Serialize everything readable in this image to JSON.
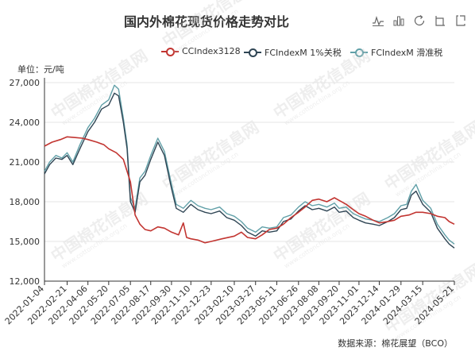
{
  "title": "国内外棉花现货价格走势对比",
  "unit_label": "单位：元/吨",
  "source_label": "数据来源：棉花展望（BCO）",
  "watermark_text": "中国棉花信息网",
  "watermark_url": "www.cottonchina.org.cn",
  "toolbox": [
    {
      "name": "line-chart-icon"
    },
    {
      "name": "bar-chart-icon"
    },
    {
      "name": "restore-icon"
    },
    {
      "name": "save-image-icon"
    },
    {
      "name": "share-icon"
    }
  ],
  "colors": {
    "cc": "#c23531",
    "fc1": "#2f4554",
    "fcs": "#61a0a8",
    "grid": "#e6e6e6",
    "axis": "#333333"
  },
  "chart_data": {
    "type": "line",
    "title": "国内外棉花现货价格走势对比",
    "xlabel": "",
    "ylabel": "单位：元/吨",
    "ylim": [
      12000,
      27000
    ],
    "yticks": [
      "12,000",
      "15,000",
      "18,000",
      "21,000",
      "24,000",
      "27,000"
    ],
    "ytick_values": [
      12000,
      15000,
      18000,
      21000,
      24000,
      27000
    ],
    "x_tick_labels": [
      "2022-01-04",
      "2022-02-21",
      "2022-04-06",
      "2022-05-20",
      "2022-07-05",
      "2022-08-17",
      "2022-09-30",
      "2022-11-10",
      "2022-12-23",
      "2023-02-10",
      "2023-03-27",
      "2023-05-11",
      "2023-06-26",
      "2023-08-08",
      "2023-09-20",
      "2023-11-01",
      "2023-12-14",
      "2024-01-29",
      "2024-03-15",
      "2024-05-21"
    ],
    "grid": true,
    "legend_position": "top-right",
    "series": [
      {
        "name": "CCIndex3128",
        "points": [
          [
            "2022-01-04",
            22200
          ],
          [
            "2022-01-20",
            22500
          ],
          [
            "2022-02-07",
            22700
          ],
          [
            "2022-02-21",
            22900
          ],
          [
            "2022-03-10",
            22850
          ],
          [
            "2022-03-25",
            22800
          ],
          [
            "2022-04-06",
            22700
          ],
          [
            "2022-04-25",
            22500
          ],
          [
            "2022-05-10",
            22300
          ],
          [
            "2022-05-20",
            22000
          ],
          [
            "2022-06-05",
            21700
          ],
          [
            "2022-06-20",
            21200
          ],
          [
            "2022-07-05",
            19500
          ],
          [
            "2022-07-15",
            17000
          ],
          [
            "2022-07-25",
            16300
          ],
          [
            "2022-08-05",
            15900
          ],
          [
            "2022-08-17",
            15800
          ],
          [
            "2022-09-01",
            16100
          ],
          [
            "2022-09-15",
            16000
          ],
          [
            "2022-09-30",
            15700
          ],
          [
            "2022-10-15",
            15500
          ],
          [
            "2022-10-25",
            16400
          ],
          [
            "2022-11-01",
            15300
          ],
          [
            "2022-11-10",
            15200
          ],
          [
            "2022-11-25",
            15100
          ],
          [
            "2022-12-10",
            14900
          ],
          [
            "2022-12-23",
            15000
          ],
          [
            "2023-01-15",
            15200
          ],
          [
            "2023-02-10",
            15400
          ],
          [
            "2023-02-25",
            15700
          ],
          [
            "2023-03-10",
            15300
          ],
          [
            "2023-03-27",
            15200
          ],
          [
            "2023-04-10",
            15500
          ],
          [
            "2023-04-25",
            15900
          ],
          [
            "2023-05-11",
            16000
          ],
          [
            "2023-05-25",
            16300
          ],
          [
            "2023-06-10",
            16800
          ],
          [
            "2023-06-26",
            17200
          ],
          [
            "2023-07-10",
            17600
          ],
          [
            "2023-07-25",
            18100
          ],
          [
            "2023-08-08",
            18200
          ],
          [
            "2023-08-25",
            18000
          ],
          [
            "2023-09-10",
            18300
          ],
          [
            "2023-09-20",
            18100
          ],
          [
            "2023-10-05",
            17800
          ],
          [
            "2023-10-20",
            17400
          ],
          [
            "2023-11-01",
            17100
          ],
          [
            "2023-11-15",
            16900
          ],
          [
            "2023-12-01",
            16600
          ],
          [
            "2023-12-14",
            16400
          ],
          [
            "2024-01-01",
            16500
          ],
          [
            "2024-01-15",
            16600
          ],
          [
            "2024-01-29",
            16900
          ],
          [
            "2024-02-15",
            17000
          ],
          [
            "2024-03-01",
            17200
          ],
          [
            "2024-03-15",
            17200
          ],
          [
            "2024-04-01",
            17100
          ],
          [
            "2024-04-15",
            16900
          ],
          [
            "2024-05-01",
            16800
          ],
          [
            "2024-05-10",
            16500
          ],
          [
            "2024-05-21",
            16300
          ]
        ]
      },
      {
        "name": "FCIndexM 1%关税",
        "points": [
          [
            "2022-01-04",
            20100
          ],
          [
            "2022-01-15",
            20800
          ],
          [
            "2022-01-28",
            21300
          ],
          [
            "2022-02-10",
            21200
          ],
          [
            "2022-02-21",
            21500
          ],
          [
            "2022-03-05",
            20800
          ],
          [
            "2022-03-20",
            22000
          ],
          [
            "2022-04-06",
            23300
          ],
          [
            "2022-04-20",
            24000
          ],
          [
            "2022-05-05",
            25000
          ],
          [
            "2022-05-20",
            25300
          ],
          [
            "2022-06-01",
            26200
          ],
          [
            "2022-06-10",
            26000
          ],
          [
            "2022-06-20",
            24000
          ],
          [
            "2022-06-28",
            22000
          ],
          [
            "2022-07-05",
            18000
          ],
          [
            "2022-07-15",
            17200
          ],
          [
            "2022-07-25",
            19500
          ],
          [
            "2022-08-05",
            20000
          ],
          [
            "2022-08-17",
            21200
          ],
          [
            "2022-09-01",
            22500
          ],
          [
            "2022-09-15",
            21500
          ],
          [
            "2022-09-30",
            19000
          ],
          [
            "2022-10-10",
            17500
          ],
          [
            "2022-10-25",
            17200
          ],
          [
            "2022-11-10",
            17800
          ],
          [
            "2022-11-25",
            17400
          ],
          [
            "2022-12-10",
            17200
          ],
          [
            "2022-12-23",
            17100
          ],
          [
            "2023-01-10",
            17300
          ],
          [
            "2023-01-25",
            16800
          ],
          [
            "2023-02-10",
            16600
          ],
          [
            "2023-02-25",
            16200
          ],
          [
            "2023-03-10",
            15700
          ],
          [
            "2023-03-27",
            15400
          ],
          [
            "2023-04-10",
            15800
          ],
          [
            "2023-04-25",
            15700
          ],
          [
            "2023-05-11",
            15800
          ],
          [
            "2023-05-25",
            16500
          ],
          [
            "2023-06-10",
            16700
          ],
          [
            "2023-06-26",
            17300
          ],
          [
            "2023-07-10",
            17700
          ],
          [
            "2023-07-25",
            17400
          ],
          [
            "2023-08-08",
            17500
          ],
          [
            "2023-08-25",
            17300
          ],
          [
            "2023-09-10",
            17600
          ],
          [
            "2023-09-20",
            17200
          ],
          [
            "2023-10-05",
            17300
          ],
          [
            "2023-10-20",
            16800
          ],
          [
            "2023-11-01",
            16600
          ],
          [
            "2023-11-15",
            16400
          ],
          [
            "2023-12-01",
            16300
          ],
          [
            "2023-12-14",
            16200
          ],
          [
            "2024-01-01",
            16500
          ],
          [
            "2024-01-15",
            16800
          ],
          [
            "2024-01-29",
            17400
          ],
          [
            "2024-02-10",
            17500
          ],
          [
            "2024-02-20",
            18500
          ],
          [
            "2024-03-01",
            18800
          ],
          [
            "2024-03-15",
            17800
          ],
          [
            "2024-04-01",
            17200
          ],
          [
            "2024-04-15",
            16000
          ],
          [
            "2024-05-01",
            15200
          ],
          [
            "2024-05-10",
            14800
          ],
          [
            "2024-05-21",
            14500
          ]
        ]
      },
      {
        "name": "FCIndexM 滑准税",
        "points": [
          [
            "2022-01-04",
            20300
          ],
          [
            "2022-01-15",
            21000
          ],
          [
            "2022-01-28",
            21500
          ],
          [
            "2022-02-10",
            21300
          ],
          [
            "2022-02-21",
            21700
          ],
          [
            "2022-03-05",
            21000
          ],
          [
            "2022-03-20",
            22300
          ],
          [
            "2022-04-06",
            23600
          ],
          [
            "2022-04-20",
            24300
          ],
          [
            "2022-05-05",
            25300
          ],
          [
            "2022-05-20",
            25700
          ],
          [
            "2022-06-01",
            26800
          ],
          [
            "2022-06-10",
            26500
          ],
          [
            "2022-06-20",
            24300
          ],
          [
            "2022-06-28",
            22300
          ],
          [
            "2022-07-05",
            18300
          ],
          [
            "2022-07-15",
            17500
          ],
          [
            "2022-07-25",
            19800
          ],
          [
            "2022-08-05",
            20300
          ],
          [
            "2022-08-17",
            21500
          ],
          [
            "2022-09-01",
            22800
          ],
          [
            "2022-09-15",
            21800
          ],
          [
            "2022-09-30",
            19300
          ],
          [
            "2022-10-10",
            17800
          ],
          [
            "2022-10-25",
            17500
          ],
          [
            "2022-11-10",
            18100
          ],
          [
            "2022-11-25",
            17700
          ],
          [
            "2022-12-10",
            17500
          ],
          [
            "2022-12-23",
            17400
          ],
          [
            "2023-01-10",
            17600
          ],
          [
            "2023-01-25",
            17100
          ],
          [
            "2023-02-10",
            16900
          ],
          [
            "2023-02-25",
            16500
          ],
          [
            "2023-03-10",
            16000
          ],
          [
            "2023-03-27",
            15700
          ],
          [
            "2023-04-10",
            16100
          ],
          [
            "2023-04-25",
            16000
          ],
          [
            "2023-05-11",
            16100
          ],
          [
            "2023-05-25",
            16800
          ],
          [
            "2023-06-10",
            17000
          ],
          [
            "2023-06-26",
            17600
          ],
          [
            "2023-07-10",
            18000
          ],
          [
            "2023-07-25",
            17700
          ],
          [
            "2023-08-08",
            17800
          ],
          [
            "2023-08-25",
            17600
          ],
          [
            "2023-09-10",
            17900
          ],
          [
            "2023-09-20",
            17500
          ],
          [
            "2023-10-05",
            17600
          ],
          [
            "2023-10-20",
            17100
          ],
          [
            "2023-11-01",
            16900
          ],
          [
            "2023-11-15",
            16700
          ],
          [
            "2023-12-01",
            16600
          ],
          [
            "2023-12-14",
            16500
          ],
          [
            "2024-01-01",
            16800
          ],
          [
            "2024-01-15",
            17100
          ],
          [
            "2024-01-29",
            17700
          ],
          [
            "2024-02-10",
            17800
          ],
          [
            "2024-02-20",
            18800
          ],
          [
            "2024-03-01",
            19300
          ],
          [
            "2024-03-15",
            18100
          ],
          [
            "2024-04-01",
            17500
          ],
          [
            "2024-04-15",
            16300
          ],
          [
            "2024-05-01",
            15500
          ],
          [
            "2024-05-10",
            15100
          ],
          [
            "2024-05-21",
            14800
          ]
        ]
      }
    ]
  }
}
